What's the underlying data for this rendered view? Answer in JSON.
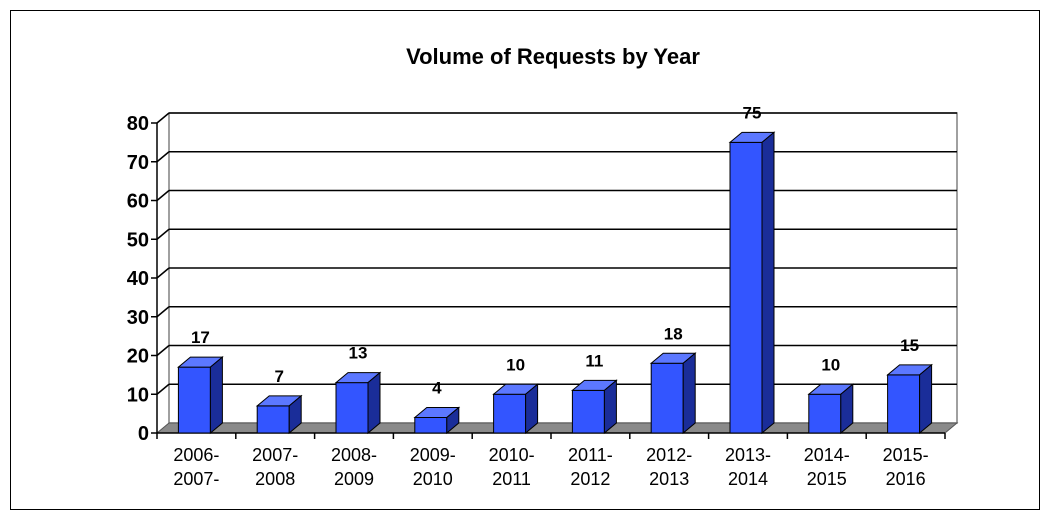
{
  "chart_data": {
    "type": "bar",
    "title": "Volume of Requests by Year",
    "categories": [
      [
        "2006-",
        "2007-"
      ],
      [
        "2007-",
        "2008"
      ],
      [
        "2008-",
        "2009"
      ],
      [
        "2009-",
        "2010"
      ],
      [
        "2010-",
        "2011"
      ],
      [
        "2011-",
        "2012"
      ],
      [
        "2012-",
        "2013"
      ],
      [
        "2013-",
        "2014"
      ],
      [
        "2014-",
        "2015"
      ],
      [
        "2015-",
        "2016"
      ]
    ],
    "values": [
      17,
      7,
      13,
      4,
      10,
      11,
      18,
      75,
      10,
      15
    ],
    "data_labels": [
      "17",
      "7",
      "13",
      "4",
      "10",
      "11",
      "18",
      "75",
      "10",
      "15"
    ],
    "yticks": [
      "0",
      "10",
      "20",
      "30",
      "40",
      "50",
      "60",
      "70",
      "80"
    ],
    "ylim": [
      0,
      80
    ],
    "xlabel": "",
    "ylabel": "",
    "grid": true,
    "legend": "none",
    "colors": {
      "bar_front": "#3355ff",
      "bar_top": "#5c78ff",
      "bar_side": "#1a2d99",
      "floor": "#8a8a8a",
      "grid": "#000000",
      "frame": "#808080"
    }
  }
}
